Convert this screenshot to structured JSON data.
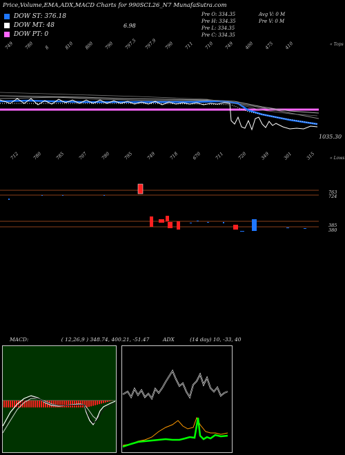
{
  "title": "Price,Volume,EMA,ADX,MACD Charts for 990SCL26_N7 MunafaSutra.com",
  "legend": [
    {
      "swatch": "#1f77ff",
      "label": "DOW ST: 376.18"
    },
    {
      "swatch": "#ffffff",
      "label": "DOW MT: 48"
    },
    {
      "swatch": "#ff66ff",
      "label": "DOW PT: 0"
    }
  ],
  "mt_extra": "6.98",
  "info": {
    "open": "Pre   O: 334.35",
    "high": "Pre   H: 334.35",
    "low": "Pre   L: 334.35",
    "close": "Pre   C: 334.35",
    "avg_vol": "Avg V: 0   M",
    "pre_vol": "Pre   V: 0   M"
  },
  "tops_label": "« Tops",
  "lows_label": "« Lows",
  "price_value": "1035.30",
  "top_labels": [
    "749",
    "780",
    "8",
    "810",
    "800",
    "790",
    "797.5 ",
    "797.9",
    "790",
    "711",
    "710",
    "749",
    "400",
    "475",
    "410"
  ],
  "low_labels": [
    "712",
    "780",
    "785",
    "707",
    "780",
    "795",
    "749",
    "718",
    "670",
    "711",
    "720",
    "349",
    "301",
    "315"
  ],
  "upper_price_labels": [
    "763",
    "724"
  ],
  "lower_price_labels": [
    "385",
    "380"
  ],
  "macd_header": "MACD:",
  "macd_values": "( 12,26,9 ) 348.74,  400.21,  -51.47",
  "adx_header": "ADX",
  "adx_values": "(14  day) 10,  -33,  40",
  "chart_data": {
    "type": "line",
    "series": [
      {
        "values": [
          1100,
          1098,
          1097,
          1096,
          1094,
          1093,
          1092,
          1090,
          1089,
          1088,
          1087,
          1086,
          1085,
          1084,
          1083,
          1082,
          1080,
          1079,
          1040,
          1020,
          1010,
          1000,
          990,
          985,
          980,
          975
        ]
      },
      {
        "values": [
          1105,
          1100,
          1104,
          1096,
          1102,
          1090,
          1098,
          1088,
          1095,
          1083,
          1091,
          1080,
          1087,
          1078,
          1084,
          1076,
          1082,
          1074,
          980,
          990,
          960,
          1000,
          985,
          970,
          975,
          965
        ]
      }
    ],
    "colors": {
      "ema_short": "#1f77ff",
      "price": "#ffffff",
      "pt": "#ff66ff",
      "macd_hist": "#ff2020",
      "adx_green": "#00ff00",
      "adx_orange": "#ff9900"
    }
  }
}
